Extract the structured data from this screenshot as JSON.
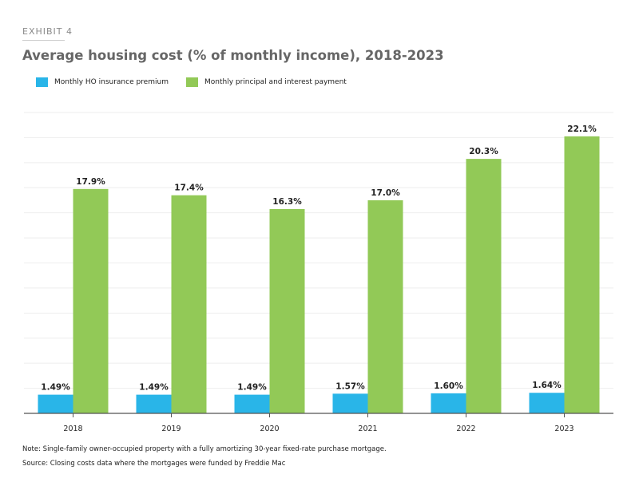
{
  "header": {
    "exhibit": "EXHIBIT 4"
  },
  "chart_data": {
    "type": "bar",
    "title": "Average housing cost (% of monthly income), 2018-2023",
    "categories": [
      "2018",
      "2019",
      "2020",
      "2021",
      "2022",
      "2023"
    ],
    "series": [
      {
        "name": "Monthly HO insurance premium",
        "color": "#29b5e8",
        "values": [
          1.49,
          1.49,
          1.49,
          1.57,
          1.6,
          1.64
        ],
        "labels": [
          "1.49%",
          "1.49%",
          "1.49%",
          "1.57%",
          "1.60%",
          "1.64%"
        ]
      },
      {
        "name": "Monthly principal and interest payment",
        "color": "#92c957",
        "values": [
          17.9,
          17.4,
          16.3,
          17.0,
          20.3,
          22.1
        ],
        "labels": [
          "17.9%",
          "17.4%",
          "16.3%",
          "17.0%",
          "20.3%",
          "22.1%"
        ]
      }
    ],
    "ylim": [
      0,
      24
    ],
    "grid_step": 2,
    "grid": true,
    "legend": "top-left",
    "xlabel": "",
    "ylabel": ""
  },
  "footer": {
    "note": "Note: Single-family owner-occupied property with a fully amortizing 30-year fixed-rate purchase mortgage.",
    "source": "Source: Closing costs data where the mortgages were funded by Freddie Mac"
  }
}
